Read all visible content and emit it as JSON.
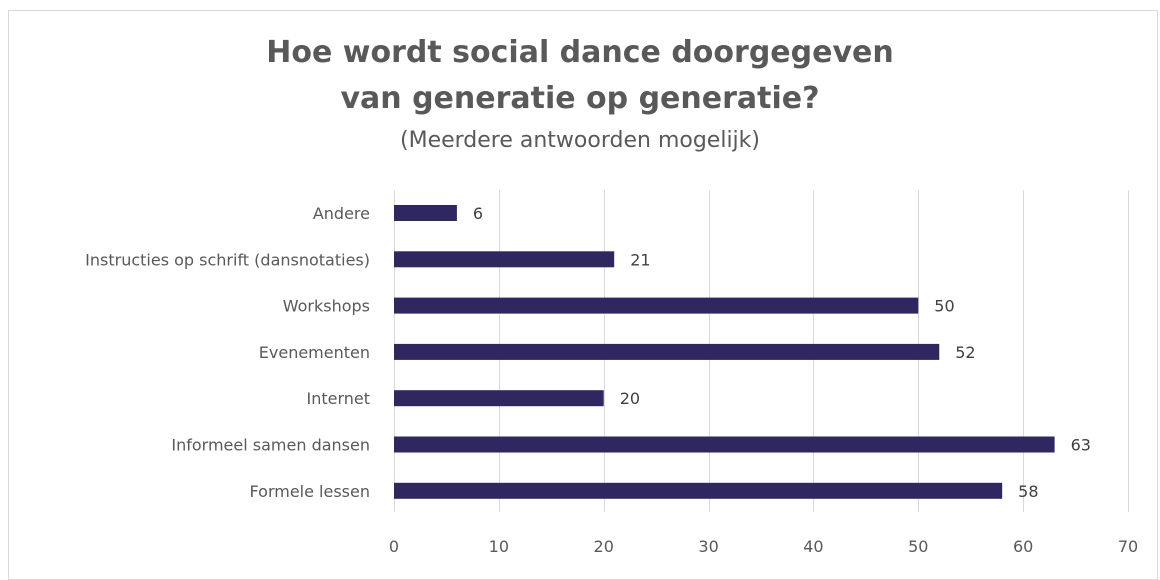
{
  "chart_data": {
    "type": "bar",
    "orientation": "horizontal",
    "title": "Hoe wordt social dance doorgegeven van generatie op generatie?",
    "title_lines": [
      "Hoe wordt social dance doorgegeven",
      "van generatie op generatie?"
    ],
    "subtitle": "(Meerdere antwoorden mogelijk)",
    "categories": [
      "Andere",
      "Instructies op schrift (dansnotaties)",
      "Workshops",
      "Evenementen",
      "Internet",
      "Informeel samen dansen",
      "Formele lessen"
    ],
    "values": [
      6,
      21,
      50,
      52,
      20,
      63,
      58
    ],
    "xlim": [
      0,
      70
    ],
    "xticks": [
      0,
      10,
      20,
      30,
      40,
      50,
      60,
      70
    ],
    "grid": true,
    "legend": "none",
    "bar_color": "#2e2760",
    "xlabel": "",
    "ylabel": ""
  }
}
